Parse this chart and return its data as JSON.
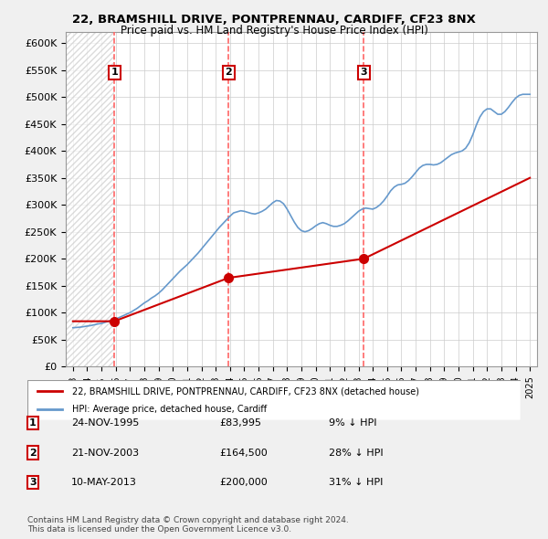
{
  "title1": "22, BRAMSHILL DRIVE, PONTPRENNAU, CARDIFF, CF23 8NX",
  "title2": "Price paid vs. HM Land Registry's House Price Index (HPI)",
  "background_color": "#f0f0f0",
  "plot_bg_color": "#ffffff",
  "hatch_color": "#d0d0d0",
  "ylim": [
    0,
    620000
  ],
  "yticks": [
    0,
    50000,
    100000,
    150000,
    200000,
    250000,
    300000,
    350000,
    400000,
    450000,
    500000,
    550000,
    600000
  ],
  "ytick_labels": [
    "£0",
    "£50K",
    "£100K",
    "£150K",
    "£200K",
    "£250K",
    "£300K",
    "£350K",
    "£400K",
    "£450K",
    "£500K",
    "£550K",
    "£600K"
  ],
  "xlim_start": 1992.5,
  "xlim_end": 2025.5,
  "xticks": [
    1993,
    1994,
    1995,
    1996,
    1997,
    1998,
    1999,
    2000,
    2001,
    2002,
    2003,
    2004,
    2005,
    2006,
    2007,
    2008,
    2009,
    2010,
    2011,
    2012,
    2013,
    2014,
    2015,
    2016,
    2017,
    2018,
    2019,
    2020,
    2021,
    2022,
    2023,
    2024,
    2025
  ],
  "hpi_color": "#6699cc",
  "price_color": "#cc0000",
  "marker_color": "#cc0000",
  "vline_color": "#ff6666",
  "sale_dates": [
    1995.9,
    2003.9,
    2013.37
  ],
  "sale_prices": [
    83995,
    164500,
    200000
  ],
  "sale_labels": [
    "1",
    "2",
    "3"
  ],
  "legend_label1": "22, BRAMSHILL DRIVE, PONTPRENNAU, CARDIFF, CF23 8NX (detached house)",
  "legend_label2": "HPI: Average price, detached house, Cardiff",
  "table_rows": [
    {
      "num": "1",
      "date": "24-NOV-1995",
      "price": "£83,995",
      "rel": "9% ↓ HPI"
    },
    {
      "num": "2",
      "date": "21-NOV-2003",
      "price": "£164,500",
      "rel": "28% ↓ HPI"
    },
    {
      "num": "3",
      "date": "10-MAY-2013",
      "price": "£200,000",
      "rel": "31% ↓ HPI"
    }
  ],
  "footnote": "Contains HM Land Registry data © Crown copyright and database right 2024.\nThis data is licensed under the Open Government Licence v3.0.",
  "hpi_x": [
    1993,
    1993.25,
    1993.5,
    1993.75,
    1994,
    1994.25,
    1994.5,
    1994.75,
    1995,
    1995.25,
    1995.5,
    1995.75,
    1996,
    1996.25,
    1996.5,
    1996.75,
    1997,
    1997.25,
    1997.5,
    1997.75,
    1998,
    1998.25,
    1998.5,
    1998.75,
    1999,
    1999.25,
    1999.5,
    1999.75,
    2000,
    2000.25,
    2000.5,
    2000.75,
    2001,
    2001.25,
    2001.5,
    2001.75,
    2002,
    2002.25,
    2002.5,
    2002.75,
    2003,
    2003.25,
    2003.5,
    2003.75,
    2004,
    2004.25,
    2004.5,
    2004.75,
    2005,
    2005.25,
    2005.5,
    2005.75,
    2006,
    2006.25,
    2006.5,
    2006.75,
    2007,
    2007.25,
    2007.5,
    2007.75,
    2008,
    2008.25,
    2008.5,
    2008.75,
    2009,
    2009.25,
    2009.5,
    2009.75,
    2010,
    2010.25,
    2010.5,
    2010.75,
    2011,
    2011.25,
    2011.5,
    2011.75,
    2012,
    2012.25,
    2012.5,
    2012.75,
    2013,
    2013.25,
    2013.5,
    2013.75,
    2014,
    2014.25,
    2014.5,
    2014.75,
    2015,
    2015.25,
    2015.5,
    2015.75,
    2016,
    2016.25,
    2016.5,
    2016.75,
    2017,
    2017.25,
    2017.5,
    2017.75,
    2018,
    2018.25,
    2018.5,
    2018.75,
    2019,
    2019.25,
    2019.5,
    2019.75,
    2020,
    2020.25,
    2020.5,
    2020.75,
    2021,
    2021.25,
    2021.5,
    2021.75,
    2022,
    2022.25,
    2022.5,
    2022.75,
    2023,
    2023.25,
    2023.5,
    2023.75,
    2024,
    2024.25,
    2024.5,
    2024.75,
    2025
  ],
  "hpi_y": [
    72000,
    72500,
    73000,
    74000,
    75000,
    76000,
    77500,
    79000,
    80000,
    82000,
    84000,
    86000,
    88000,
    91000,
    94000,
    97000,
    100000,
    104000,
    108000,
    113000,
    118000,
    122000,
    127000,
    131000,
    136000,
    142000,
    149000,
    156000,
    163000,
    170000,
    177000,
    183000,
    189000,
    196000,
    203000,
    210000,
    218000,
    226000,
    234000,
    242000,
    250000,
    258000,
    265000,
    272000,
    279000,
    285000,
    287000,
    289000,
    288000,
    286000,
    284000,
    283000,
    285000,
    288000,
    292000,
    298000,
    304000,
    308000,
    307000,
    302000,
    292000,
    280000,
    268000,
    258000,
    252000,
    250000,
    252000,
    256000,
    261000,
    265000,
    267000,
    265000,
    262000,
    260000,
    260000,
    262000,
    265000,
    270000,
    276000,
    282000,
    288000,
    292000,
    294000,
    293000,
    292000,
    295000,
    300000,
    307000,
    316000,
    326000,
    333000,
    337000,
    338000,
    340000,
    345000,
    352000,
    360000,
    368000,
    373000,
    375000,
    375000,
    374000,
    375000,
    378000,
    383000,
    388000,
    393000,
    396000,
    398000,
    400000,
    405000,
    415000,
    430000,
    448000,
    463000,
    473000,
    478000,
    478000,
    473000,
    468000,
    468000,
    473000,
    481000,
    490000,
    498000,
    503000,
    505000,
    505000,
    505000
  ],
  "price_x": [
    1993,
    1995.9,
    2003.9,
    2013.37,
    2025
  ],
  "price_y": [
    83995,
    83995,
    164500,
    200000,
    350000
  ]
}
